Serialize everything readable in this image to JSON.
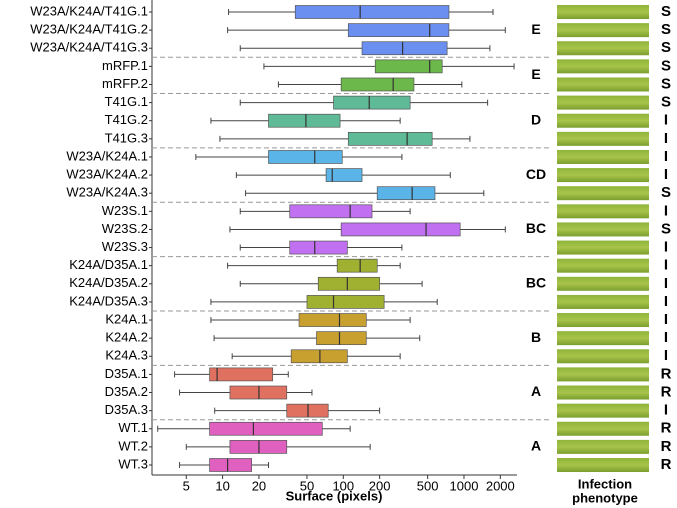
{
  "chart_data": {
    "type": "boxplot",
    "xlabel": "Surface (pixels)",
    "phenotype_title": [
      "Infection",
      "phenotype"
    ],
    "xscale": "log",
    "xlim": [
      2.6,
      2750
    ],
    "xticks": [
      5,
      10,
      20,
      50,
      100,
      200,
      500,
      1000,
      2000
    ],
    "phenotype_colors": {
      "S": "#c00000",
      "I": "#4bacc6",
      "R": "#70ad47"
    },
    "groups": [
      {
        "label": "E",
        "color": "#6b8ff0",
        "categories": [
          "W23A/K24A/T41G.1",
          "W23A/K24A/T41G.2",
          "W23A/K24A/T41G.3"
        ],
        "boxes": [
          [
            11.2,
            40,
            138,
            751,
            1740
          ],
          [
            11,
            110,
            520,
            750,
            2200
          ],
          [
            14,
            143,
            310,
            725,
            1640
          ]
        ],
        "phenotypes": [
          "S",
          "S",
          "S"
        ]
      },
      {
        "label": "E",
        "color": "#6cb84a",
        "categories": [
          "mRFP.1",
          "mRFP.2"
        ],
        "boxes": [
          [
            22,
            184,
            520,
            660,
            2600
          ],
          [
            29,
            96,
            259,
            385,
            960
          ]
        ],
        "phenotypes": [
          "S",
          "S"
        ]
      },
      {
        "label": "D",
        "color": "#5fba98",
        "categories": [
          "T41G.1",
          "T41G.2",
          "T41G.3"
        ],
        "boxes": [
          [
            14,
            83,
            164,
            358,
            1570
          ],
          [
            8,
            24,
            49,
            94,
            296
          ],
          [
            9.5,
            110,
            338,
            545,
            1120
          ]
        ],
        "phenotypes": [
          "S",
          "I",
          "I"
        ]
      },
      {
        "label": "CD",
        "color": "#5ab4e8",
        "categories": [
          "W23A/K24A.1",
          "W23A/K24A.2",
          "W23A/K24A.3"
        ],
        "boxes": [
          [
            6,
            24,
            58,
            98,
            306
          ],
          [
            13,
            72,
            81,
            143,
            770
          ],
          [
            15.5,
            191,
            372,
            575,
            1460
          ]
        ],
        "phenotypes": [
          "I",
          "I",
          "S"
        ]
      },
      {
        "label": "BC",
        "color": "#c070f0",
        "categories": [
          "W23S.1",
          "W23S.2",
          "W23S.3"
        ],
        "boxes": [
          [
            14,
            36,
            114,
            173,
            358
          ],
          [
            11.5,
            96,
            485,
            930,
            2200
          ],
          [
            14,
            36,
            58,
            108,
            306
          ]
        ],
        "phenotypes": [
          "I",
          "S",
          "I"
        ]
      },
      {
        "label": "BC",
        "color": "#a0b030",
        "categories": [
          "K24A/D35A.1",
          "K24A/D35A.2",
          "K24A/D35A.3"
        ],
        "boxes": [
          [
            11,
            89,
            138,
            191,
            296
          ],
          [
            14,
            62,
            108,
            200,
            450
          ],
          [
            8,
            50,
            83,
            218,
            600
          ]
        ],
        "phenotypes": [
          "I",
          "I",
          "I"
        ]
      },
      {
        "label": "B",
        "color": "#c8a030",
        "categories": [
          "K24A.1",
          "K24A.2",
          "K24A.3"
        ],
        "boxes": [
          [
            8,
            43,
            93,
            155,
            358
          ],
          [
            8.5,
            60,
            93,
            155,
            430
          ],
          [
            12,
            37,
            64,
            108,
            296
          ]
        ],
        "phenotypes": [
          "I",
          "I",
          "I"
        ]
      },
      {
        "label": "A",
        "color": "#e07060",
        "categories": [
          "D35A.1",
          "D35A.2",
          "D35A.3"
        ],
        "boxes": [
          [
            4,
            7.8,
            9,
            26,
            35
          ],
          [
            4.4,
            11.5,
            20,
            34,
            55
          ],
          [
            8.6,
            34,
            51,
            75,
            200
          ]
        ],
        "phenotypes": [
          "R",
          "R",
          "I"
        ]
      },
      {
        "label": "A",
        "color": "#e060c0",
        "categories": [
          "WT.1",
          "WT.2",
          "WT.3"
        ],
        "boxes": [
          [
            2.9,
            7.8,
            18,
            67,
            114
          ],
          [
            5,
            11.5,
            20,
            34,
            167
          ],
          [
            4.4,
            7.8,
            11,
            17.4,
            24
          ]
        ],
        "phenotypes": [
          "R",
          "R",
          "R"
        ]
      }
    ]
  }
}
